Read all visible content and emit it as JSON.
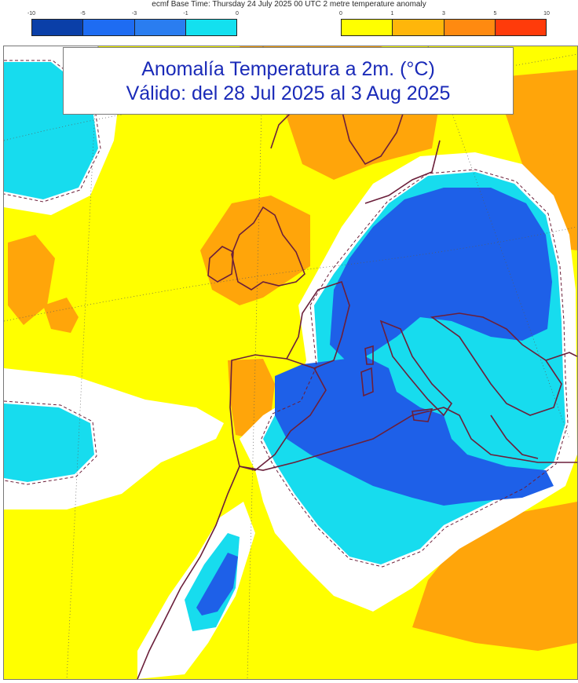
{
  "header": {
    "base_time": "ecmf  Base Time: Thursday 24 July 2025 00 UTC 2 metre temperature anomaly"
  },
  "colorbar_negative": {
    "ticks": [
      "-10",
      "-5",
      "-3",
      "-1",
      "0"
    ],
    "colors": [
      "#0a3fa8",
      "#1e6cf2",
      "#2a7df0",
      "#13e0ef"
    ]
  },
  "colorbar_positive": {
    "ticks": [
      "0",
      "1",
      "3",
      "5",
      "10"
    ],
    "colors": [
      "#ffff00",
      "#ffb60a",
      "#ff8a10",
      "#ff3b0a"
    ]
  },
  "title": {
    "line1": "Anomalía Temperatura a 2m. (°C)",
    "line2": "Válido: del 28 Jul 2025 al 3 Aug 2025"
  },
  "map": {
    "colors": {
      "strong_cold": "#1e60e8",
      "cold": "#17dcee",
      "neutral": "#ffffff",
      "warm": "#ffff00",
      "hot": "#ffa50a",
      "coast": "#6b1f3a"
    }
  }
}
